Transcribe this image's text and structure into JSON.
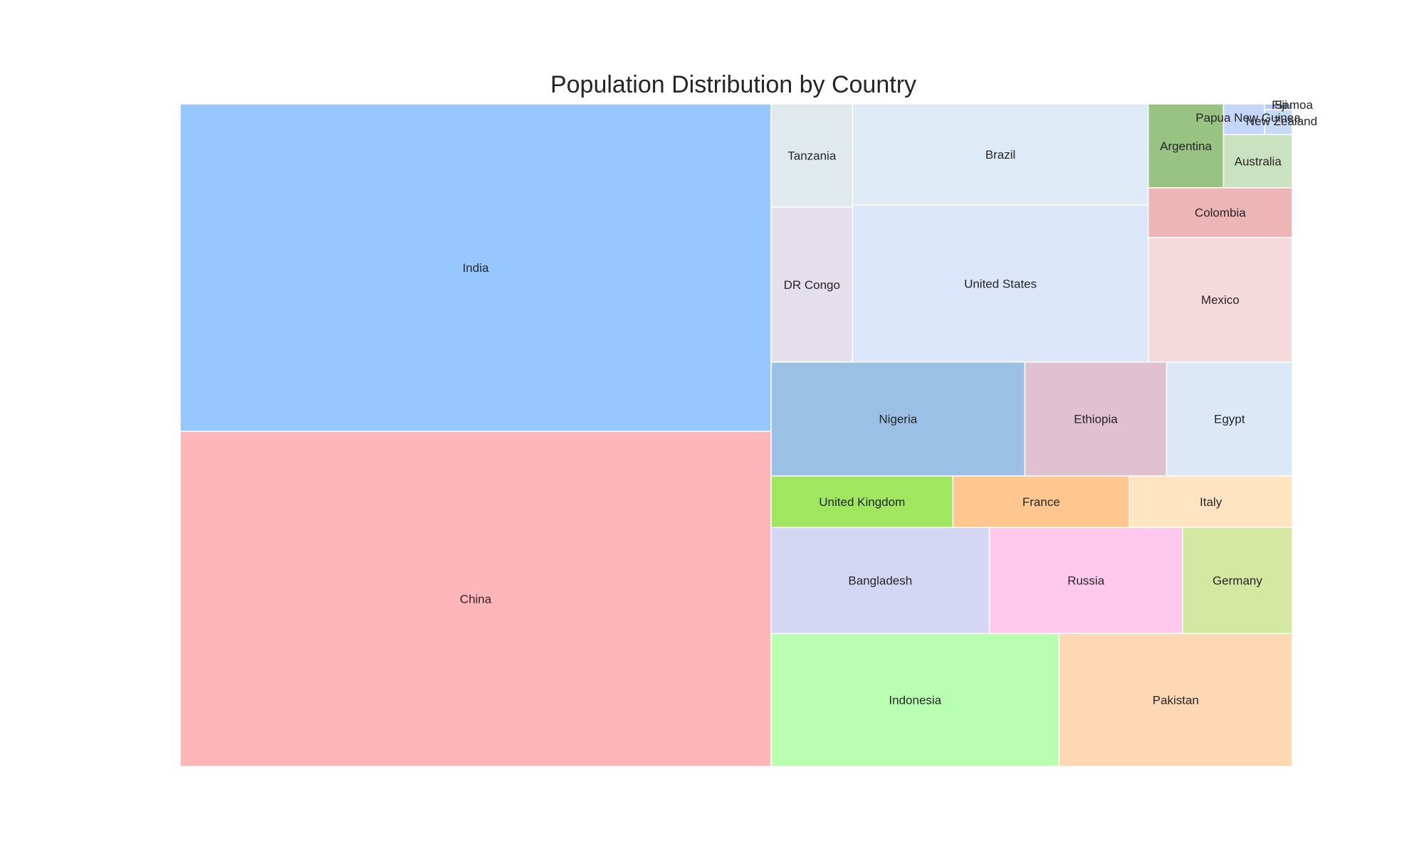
{
  "chart_data": {
    "type": "treemap",
    "title": "Population Distribution by Country",
    "xlabel": "",
    "ylabel": "",
    "grid": false,
    "legend": "none",
    "items": [
      {
        "name": "China",
        "value": 1412,
        "color": "#ffb6b9"
      },
      {
        "name": "India",
        "value": 1380,
        "color": "#96c8ff"
      },
      {
        "name": "Indonesia",
        "value": 273,
        "color": "#b8ffb2"
      },
      {
        "name": "Pakistan",
        "value": 221,
        "color": "#fed8b4"
      },
      {
        "name": "Bangladesh",
        "value": 165,
        "color": "#d5d6f3"
      },
      {
        "name": "Russia",
        "value": 146,
        "color": "#ffc9ed"
      },
      {
        "name": "Germany",
        "value": 83,
        "color": "#d5e8a1"
      },
      {
        "name": "United Kingdom",
        "value": 67,
        "color": "#a0e65f"
      },
      {
        "name": "France",
        "value": 65,
        "color": "#fec790"
      },
      {
        "name": "Italy",
        "value": 60,
        "color": "#ffe4c2"
      },
      {
        "name": "Nigeria",
        "value": 206,
        "color": "#9bc0e5"
      },
      {
        "name": "Ethiopia",
        "value": 115,
        "color": "#e1c0cf"
      },
      {
        "name": "Egypt",
        "value": 102,
        "color": "#dde8f6"
      },
      {
        "name": "United States",
        "value": 331,
        "color": "#dbe6fa"
      },
      {
        "name": "Brazil",
        "value": 213,
        "color": "#deeaf6"
      },
      {
        "name": "Mexico",
        "value": 128,
        "color": "#f6d9db"
      },
      {
        "name": "Colombia",
        "value": 51,
        "color": "#edb5b5"
      },
      {
        "name": "Argentina",
        "value": 45,
        "color": "#98c383"
      },
      {
        "name": "DR Congo",
        "value": 90,
        "color": "#e4dfed"
      },
      {
        "name": "Tanzania",
        "value": 60,
        "color": "#e0eaed"
      },
      {
        "name": "Australia",
        "value": 26,
        "color": "#cbe2c1"
      },
      {
        "name": "Papua New Guinea",
        "value": 9,
        "color": "#c4d6fa"
      },
      {
        "name": "New Zealand",
        "value": 5,
        "color": "#c7dbf5"
      },
      {
        "name": "Fiji",
        "value": 0.9,
        "color": "#b7cdf1"
      },
      {
        "name": "Samoa",
        "value": 0.2,
        "color": "#a9c3ef"
      }
    ]
  }
}
